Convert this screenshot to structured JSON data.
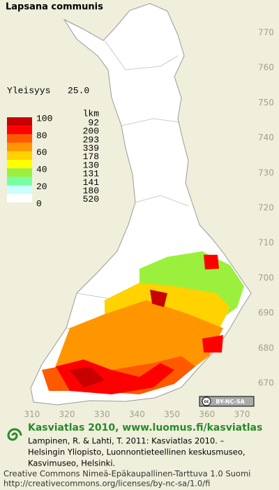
{
  "title": "Lapsana communis",
  "frequency": {
    "label": "Yleisyys",
    "value": "25.0"
  },
  "legend": {
    "header": "lkm",
    "scale": [
      100,
      80,
      60,
      40,
      20,
      0
    ],
    "classes": [
      {
        "color": "#c80000",
        "count": 92
      },
      {
        "color": "#ff0000",
        "count": 200
      },
      {
        "color": "#ff5a00",
        "count": 293
      },
      {
        "color": "#ff9600",
        "count": 339
      },
      {
        "color": "#ffd200",
        "count": 178
      },
      {
        "color": "#ffff00",
        "count": 130
      },
      {
        "color": "#9af03c",
        "count": 131
      },
      {
        "color": "#78ffa0",
        "count": 141
      },
      {
        "color": "#c8ffff",
        "count": 180
      },
      {
        "color": "#ffffff",
        "count": 520
      }
    ]
  },
  "map": {
    "northing_ticks": [
      770,
      760,
      750,
      740,
      730,
      720,
      710,
      700,
      690,
      680,
      670
    ],
    "easting_ticks": [
      310,
      320,
      330,
      340,
      350,
      360,
      370
    ],
    "license_badge": "BY-NC-SA"
  },
  "footer": {
    "heading": "Kasviatlas 2010, www.luomus.fi/kasviatlas",
    "citation": [
      "Lampinen, R. & Lahti, T. 2011: Kasviatlas 2010. –",
      "Helsingin Yliopisto, Luonnontieteellinen keskusmuseo,",
      "Kasvimuseo, Helsinki."
    ],
    "license": [
      "Creative Commons Nimeä-Epäkaupallinen-Tarttuva 1.0 Suomi",
      "http://creativecommons.org/licenses/by-nc-sa/1.0/fi"
    ]
  }
}
